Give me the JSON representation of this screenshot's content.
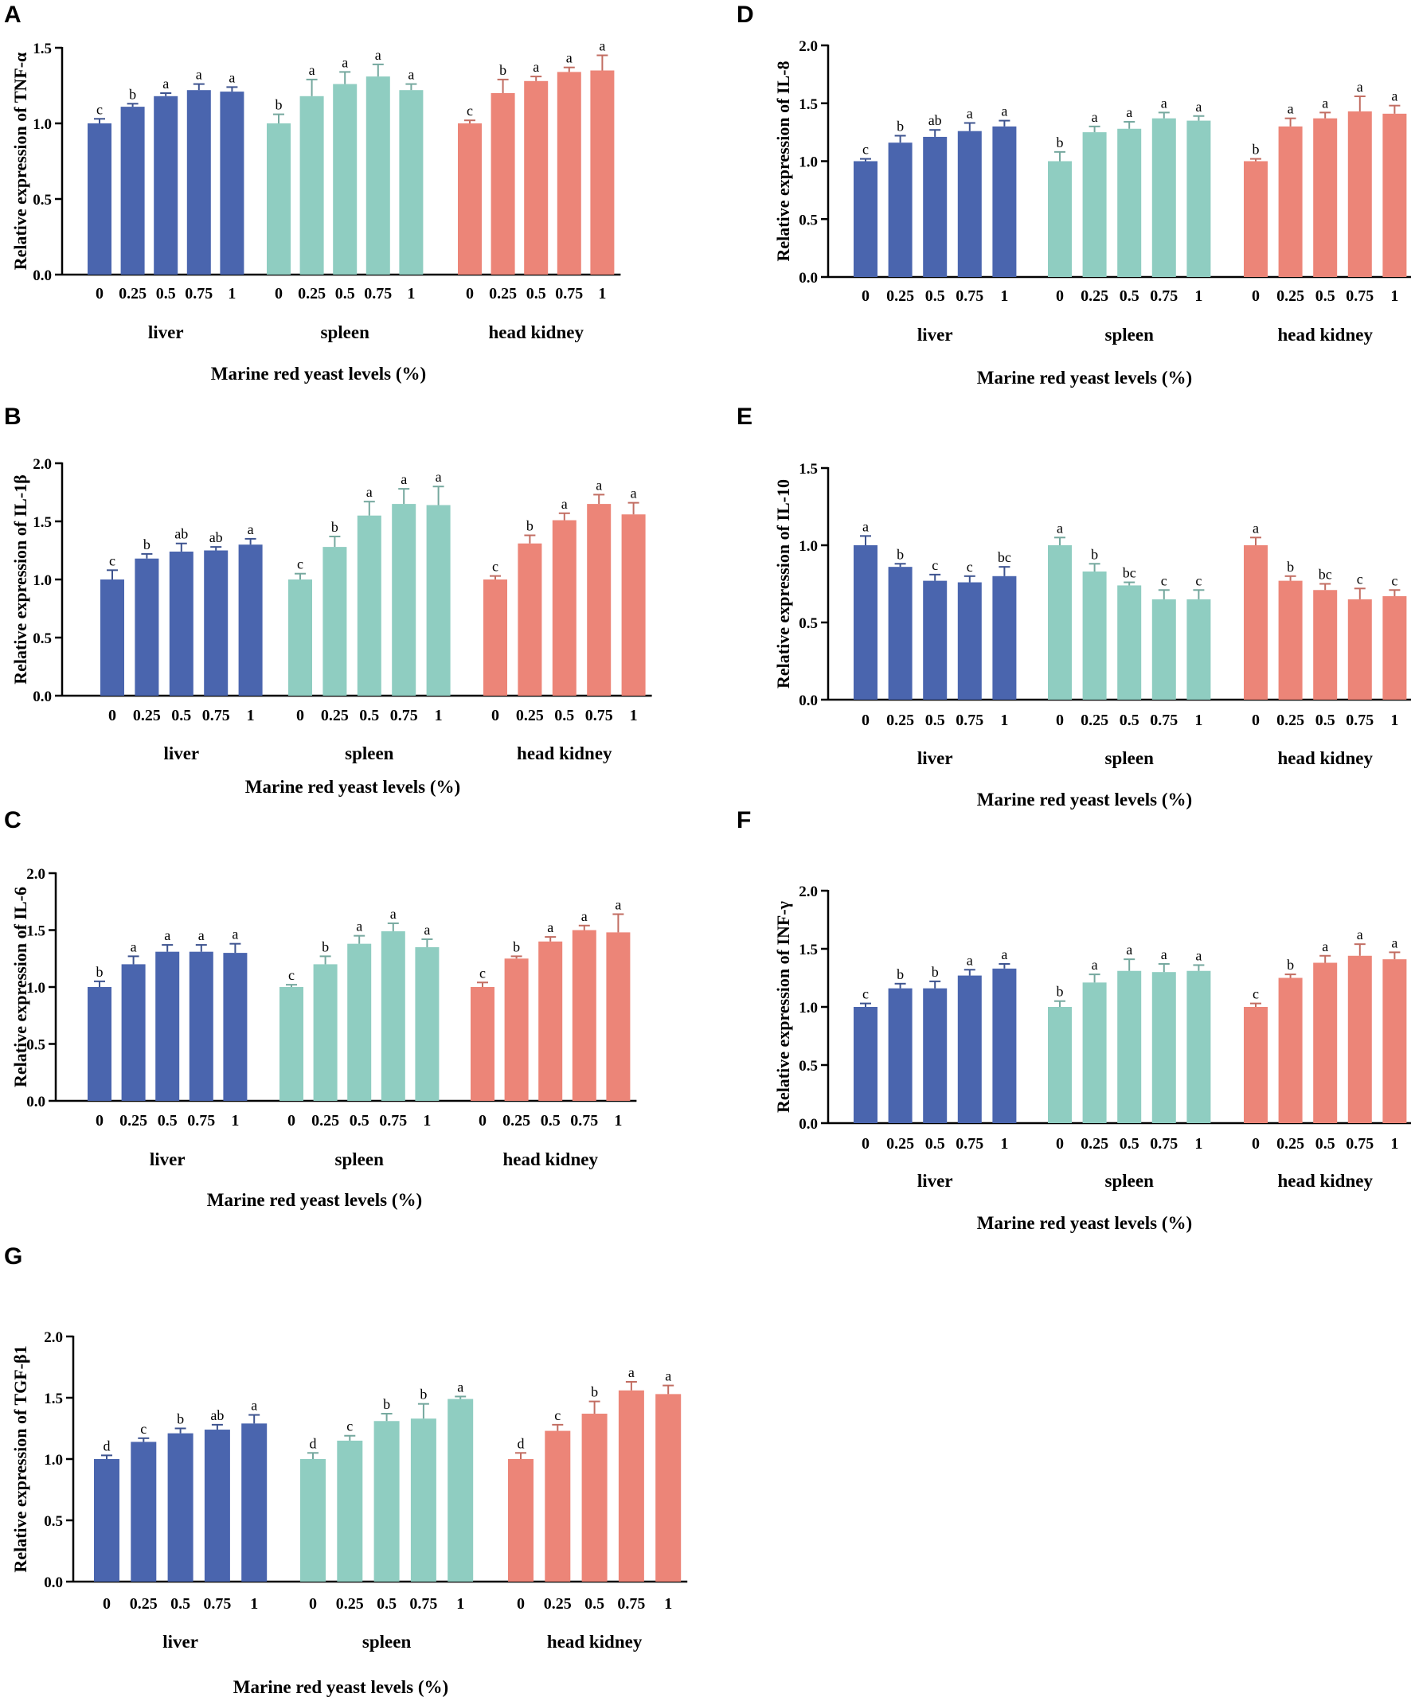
{
  "chart_data": [
    {
      "panel": "A",
      "type": "bar",
      "ylabel": "Relative expression of TNF-α",
      "xlabel": "Marine red yeast levels (%)",
      "yticks": [
        "0.0",
        "0.5",
        "1.0",
        "1.5"
      ],
      "ylim": [
        0,
        1.5
      ],
      "levels": [
        "0",
        "0.25",
        "0.5",
        "0.75",
        "1"
      ],
      "groups": [
        {
          "name": "liver",
          "color": "#4a65ae",
          "values": [
            1.0,
            1.11,
            1.18,
            1.22,
            1.21
          ],
          "errors": [
            0.03,
            0.02,
            0.02,
            0.04,
            0.03
          ],
          "letters": [
            "c",
            "b",
            "a",
            "a",
            "a"
          ]
        },
        {
          "name": "spleen",
          "color": "#8fcdc1",
          "values": [
            1.0,
            1.18,
            1.26,
            1.31,
            1.22
          ],
          "errors": [
            0.06,
            0.11,
            0.08,
            0.08,
            0.04
          ],
          "letters": [
            "b",
            "a",
            "a",
            "a",
            "a"
          ]
        },
        {
          "name": "head kidney",
          "color": "#ec8578",
          "values": [
            1.0,
            1.2,
            1.28,
            1.34,
            1.35
          ],
          "errors": [
            0.02,
            0.09,
            0.03,
            0.03,
            0.1
          ],
          "letters": [
            "c",
            "b",
            "a",
            "a",
            "a"
          ]
        }
      ]
    },
    {
      "panel": "B",
      "type": "bar",
      "ylabel": "Relative expression of IL-1β",
      "xlabel": "Marine red yeast levels (%)",
      "yticks": [
        "0.0",
        "0.5",
        "1.0",
        "1.5",
        "2.0"
      ],
      "ylim": [
        0,
        2.0
      ],
      "levels": [
        "0",
        "0.25",
        "0.5",
        "0.75",
        "1"
      ],
      "groups": [
        {
          "name": "liver",
          "color": "#4a65ae",
          "values": [
            1.0,
            1.18,
            1.24,
            1.25,
            1.3
          ],
          "errors": [
            0.08,
            0.04,
            0.07,
            0.03,
            0.05
          ],
          "letters": [
            "c",
            "b",
            "ab",
            "ab",
            "a"
          ]
        },
        {
          "name": "spleen",
          "color": "#8fcdc1",
          "values": [
            1.0,
            1.28,
            1.55,
            1.65,
            1.64
          ],
          "errors": [
            0.05,
            0.09,
            0.12,
            0.13,
            0.16
          ],
          "letters": [
            "c",
            "b",
            "a",
            "a",
            "a"
          ]
        },
        {
          "name": "head kidney",
          "color": "#ec8578",
          "values": [
            1.0,
            1.31,
            1.51,
            1.65,
            1.56
          ],
          "errors": [
            0.03,
            0.07,
            0.06,
            0.08,
            0.1
          ],
          "letters": [
            "c",
            "b",
            "a",
            "a",
            "a"
          ]
        }
      ]
    },
    {
      "panel": "C",
      "type": "bar",
      "ylabel": "Relative expression of IL-6",
      "xlabel": "Marine red yeast levels (%)",
      "yticks": [
        "0.0",
        "0.5",
        "1.0",
        "1.5",
        "2.0"
      ],
      "ylim": [
        0,
        2.0
      ],
      "levels": [
        "0",
        "0.25",
        "0.5",
        "0.75",
        "1"
      ],
      "groups": [
        {
          "name": "liver",
          "color": "#4a65ae",
          "values": [
            1.0,
            1.2,
            1.31,
            1.31,
            1.3
          ],
          "errors": [
            0.05,
            0.07,
            0.06,
            0.06,
            0.08
          ],
          "letters": [
            "b",
            "a",
            "a",
            "a",
            "a"
          ]
        },
        {
          "name": "spleen",
          "color": "#8fcdc1",
          "values": [
            1.0,
            1.2,
            1.38,
            1.49,
            1.35
          ],
          "errors": [
            0.02,
            0.07,
            0.07,
            0.07,
            0.07
          ],
          "letters": [
            "c",
            "b",
            "a",
            "a",
            "a"
          ]
        },
        {
          "name": "head kidney",
          "color": "#ec8578",
          "values": [
            1.0,
            1.25,
            1.4,
            1.5,
            1.48
          ],
          "errors": [
            0.04,
            0.02,
            0.04,
            0.04,
            0.16
          ],
          "letters": [
            "c",
            "b",
            "a",
            "a",
            "a"
          ]
        }
      ]
    },
    {
      "panel": "D",
      "type": "bar",
      "ylabel": "Relative expression of IL-8",
      "xlabel": "Marine red yeast levels (%)",
      "yticks": [
        "0.0",
        "0.5",
        "1.0",
        "1.5",
        "2.0"
      ],
      "ylim": [
        0,
        2.0
      ],
      "levels": [
        "0",
        "0.25",
        "0.5",
        "0.75",
        "1"
      ],
      "groups": [
        {
          "name": "liver",
          "color": "#4a65ae",
          "values": [
            1.0,
            1.16,
            1.21,
            1.26,
            1.3
          ],
          "errors": [
            0.02,
            0.06,
            0.06,
            0.07,
            0.05
          ],
          "letters": [
            "c",
            "b",
            "ab",
            "a",
            "a"
          ]
        },
        {
          "name": "spleen",
          "color": "#8fcdc1",
          "values": [
            1.0,
            1.25,
            1.28,
            1.37,
            1.35
          ],
          "errors": [
            0.08,
            0.05,
            0.06,
            0.05,
            0.04
          ],
          "letters": [
            "b",
            "a",
            "a",
            "a",
            "a"
          ]
        },
        {
          "name": "head kidney",
          "color": "#ec8578",
          "values": [
            1.0,
            1.3,
            1.37,
            1.43,
            1.41
          ],
          "errors": [
            0.02,
            0.07,
            0.05,
            0.13,
            0.07
          ],
          "letters": [
            "b",
            "a",
            "a",
            "a",
            "a"
          ]
        }
      ]
    },
    {
      "panel": "E",
      "type": "bar",
      "ylabel": "Relative expression of IL-10",
      "xlabel": "Marine red yeast levels (%)",
      "yticks": [
        "0.0",
        "0.5",
        "1.0",
        "1.5"
      ],
      "ylim": [
        0,
        1.5
      ],
      "levels": [
        "0",
        "0.25",
        "0.5",
        "0.75",
        "1"
      ],
      "groups": [
        {
          "name": "liver",
          "color": "#4a65ae",
          "values": [
            1.0,
            0.86,
            0.77,
            0.76,
            0.8
          ],
          "errors": [
            0.06,
            0.02,
            0.04,
            0.04,
            0.06
          ],
          "letters": [
            "a",
            "b",
            "c",
            "c",
            "bc"
          ]
        },
        {
          "name": "spleen",
          "color": "#8fcdc1",
          "values": [
            1.0,
            0.83,
            0.74,
            0.65,
            0.65
          ],
          "errors": [
            0.05,
            0.05,
            0.02,
            0.06,
            0.06
          ],
          "letters": [
            "a",
            "b",
            "bc",
            "c",
            "c"
          ]
        },
        {
          "name": "head kidney",
          "color": "#ec8578",
          "values": [
            1.0,
            0.77,
            0.71,
            0.65,
            0.67
          ],
          "errors": [
            0.05,
            0.03,
            0.04,
            0.07,
            0.04
          ],
          "letters": [
            "a",
            "b",
            "bc",
            "c",
            "c"
          ]
        }
      ]
    },
    {
      "panel": "F",
      "type": "bar",
      "ylabel": "Relative expression of INF-γ",
      "xlabel": "Marine red yeast levels (%)",
      "yticks": [
        "0.0",
        "0.5",
        "1.0",
        "1.5",
        "2.0"
      ],
      "ylim": [
        0,
        2.0
      ],
      "levels": [
        "0",
        "0.25",
        "0.5",
        "0.75",
        "1"
      ],
      "groups": [
        {
          "name": "liver",
          "color": "#4a65ae",
          "values": [
            1.0,
            1.16,
            1.16,
            1.27,
            1.33
          ],
          "errors": [
            0.03,
            0.04,
            0.06,
            0.05,
            0.04
          ],
          "letters": [
            "c",
            "b",
            "b",
            "a",
            "a"
          ]
        },
        {
          "name": "spleen",
          "color": "#8fcdc1",
          "values": [
            1.0,
            1.21,
            1.31,
            1.3,
            1.31
          ],
          "errors": [
            0.05,
            0.07,
            0.1,
            0.07,
            0.05
          ],
          "letters": [
            "b",
            "a",
            "a",
            "a",
            "a"
          ]
        },
        {
          "name": "head kidney",
          "color": "#ec8578",
          "values": [
            1.0,
            1.25,
            1.38,
            1.44,
            1.41
          ],
          "errors": [
            0.03,
            0.03,
            0.06,
            0.1,
            0.06
          ],
          "letters": [
            "c",
            "b",
            "a",
            "a",
            "a"
          ]
        }
      ]
    },
    {
      "panel": "G",
      "type": "bar",
      "ylabel": "Relative expression of TGF-β1",
      "xlabel": "Marine red yeast levels (%)",
      "yticks": [
        "0.0",
        "0.5",
        "1.0",
        "1.5",
        "2.0"
      ],
      "ylim": [
        0,
        2.0
      ],
      "levels": [
        "0",
        "0.25",
        "0.5",
        "0.75",
        "1"
      ],
      "groups": [
        {
          "name": "liver",
          "color": "#4a65ae",
          "values": [
            1.0,
            1.14,
            1.21,
            1.24,
            1.29
          ],
          "errors": [
            0.03,
            0.03,
            0.04,
            0.04,
            0.07
          ],
          "letters": [
            "d",
            "c",
            "b",
            "ab",
            "a"
          ]
        },
        {
          "name": "spleen",
          "color": "#8fcdc1",
          "values": [
            1.0,
            1.15,
            1.31,
            1.33,
            1.49
          ],
          "errors": [
            0.05,
            0.04,
            0.06,
            0.12,
            0.02
          ],
          "letters": [
            "d",
            "c",
            "b",
            "b",
            "a"
          ]
        },
        {
          "name": "head kidney",
          "color": "#ec8578",
          "values": [
            1.0,
            1.23,
            1.37,
            1.56,
            1.53
          ],
          "errors": [
            0.05,
            0.05,
            0.1,
            0.07,
            0.07
          ],
          "letters": [
            "d",
            "c",
            "b",
            "a",
            "a"
          ]
        }
      ]
    }
  ]
}
